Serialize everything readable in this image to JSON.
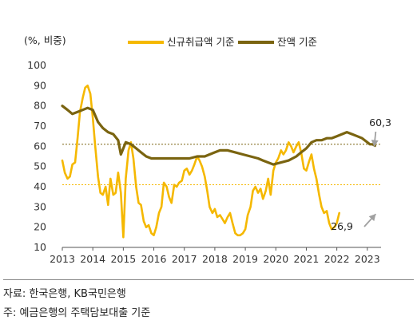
{
  "chart_data": {
    "type": "line",
    "unit_label": "(%, 비중)",
    "ylim": [
      10,
      100
    ],
    "y_ticks": [
      10,
      20,
      30,
      40,
      50,
      60,
      70,
      80,
      90,
      100
    ],
    "xlim": [
      2013.0,
      2023.45
    ],
    "x_ticks": [
      2013,
      2014,
      2015,
      2016,
      2017,
      2018,
      2019,
      2020,
      2021,
      2022,
      2023
    ],
    "grid": false,
    "legend_position": "top",
    "series": [
      {
        "name": "신규취급액 기준",
        "color": "#f5b800",
        "points": [
          [
            2013.0,
            53
          ],
          [
            2013.08,
            47
          ],
          [
            2013.17,
            44
          ],
          [
            2013.25,
            45
          ],
          [
            2013.33,
            51
          ],
          [
            2013.42,
            52
          ],
          [
            2013.5,
            64
          ],
          [
            2013.58,
            77
          ],
          [
            2013.67,
            84
          ],
          [
            2013.75,
            89
          ],
          [
            2013.83,
            90
          ],
          [
            2013.92,
            86
          ],
          [
            2014.0,
            74
          ],
          [
            2014.08,
            60
          ],
          [
            2014.17,
            45
          ],
          [
            2014.25,
            37
          ],
          [
            2014.33,
            36
          ],
          [
            2014.42,
            40
          ],
          [
            2014.5,
            31
          ],
          [
            2014.58,
            44
          ],
          [
            2014.67,
            36
          ],
          [
            2014.75,
            37
          ],
          [
            2014.83,
            47
          ],
          [
            2014.92,
            37
          ],
          [
            2015.0,
            15
          ],
          [
            2015.08,
            44
          ],
          [
            2015.17,
            58
          ],
          [
            2015.25,
            62
          ],
          [
            2015.33,
            54
          ],
          [
            2015.42,
            40
          ],
          [
            2015.5,
            32
          ],
          [
            2015.58,
            31
          ],
          [
            2015.67,
            23
          ],
          [
            2015.75,
            20
          ],
          [
            2015.83,
            21
          ],
          [
            2015.92,
            17
          ],
          [
            2016.0,
            16
          ],
          [
            2016.08,
            20
          ],
          [
            2016.17,
            27
          ],
          [
            2016.25,
            30
          ],
          [
            2016.33,
            42
          ],
          [
            2016.42,
            40
          ],
          [
            2016.5,
            35
          ],
          [
            2016.58,
            32
          ],
          [
            2016.67,
            41
          ],
          [
            2016.75,
            40
          ],
          [
            2016.83,
            42
          ],
          [
            2016.92,
            43
          ],
          [
            2017.0,
            48
          ],
          [
            2017.08,
            49
          ],
          [
            2017.17,
            46
          ],
          [
            2017.25,
            48
          ],
          [
            2017.33,
            51
          ],
          [
            2017.42,
            55
          ],
          [
            2017.5,
            53
          ],
          [
            2017.58,
            50
          ],
          [
            2017.67,
            45
          ],
          [
            2017.75,
            38
          ],
          [
            2017.83,
            30
          ],
          [
            2017.92,
            27
          ],
          [
            2018.0,
            29
          ],
          [
            2018.08,
            25
          ],
          [
            2018.17,
            26
          ],
          [
            2018.25,
            24
          ],
          [
            2018.33,
            22
          ],
          [
            2018.42,
            25
          ],
          [
            2018.5,
            27
          ],
          [
            2018.58,
            22
          ],
          [
            2018.67,
            17
          ],
          [
            2018.75,
            16
          ],
          [
            2018.83,
            16
          ],
          [
            2018.92,
            17
          ],
          [
            2019.0,
            19
          ],
          [
            2019.08,
            26
          ],
          [
            2019.17,
            30
          ],
          [
            2019.25,
            38
          ],
          [
            2019.33,
            40
          ],
          [
            2019.42,
            37
          ],
          [
            2019.5,
            39
          ],
          [
            2019.58,
            34
          ],
          [
            2019.67,
            38
          ],
          [
            2019.75,
            44
          ],
          [
            2019.83,
            36
          ],
          [
            2019.92,
            48
          ],
          [
            2020.0,
            52
          ],
          [
            2020.08,
            54
          ],
          [
            2020.17,
            58
          ],
          [
            2020.25,
            56
          ],
          [
            2020.33,
            58
          ],
          [
            2020.42,
            62
          ],
          [
            2020.5,
            60
          ],
          [
            2020.58,
            57
          ],
          [
            2020.67,
            60
          ],
          [
            2020.75,
            62
          ],
          [
            2020.83,
            57
          ],
          [
            2020.92,
            49
          ],
          [
            2021.0,
            48
          ],
          [
            2021.08,
            52
          ],
          [
            2021.17,
            56
          ],
          [
            2021.25,
            49
          ],
          [
            2021.33,
            44
          ],
          [
            2021.42,
            36
          ],
          [
            2021.5,
            30
          ],
          [
            2021.58,
            27
          ],
          [
            2021.67,
            28
          ],
          [
            2021.75,
            22
          ],
          [
            2021.83,
            19
          ],
          [
            2021.92,
            20
          ],
          [
            2022.0,
            22
          ],
          [
            2022.08,
            27
          ]
        ]
      },
      {
        "name": "잔액 기준",
        "color": "#7a6410",
        "points": [
          [
            2013.0,
            80
          ],
          [
            2013.17,
            78
          ],
          [
            2013.33,
            76
          ],
          [
            2013.5,
            77
          ],
          [
            2013.67,
            78
          ],
          [
            2013.83,
            79
          ],
          [
            2014.0,
            78
          ],
          [
            2014.17,
            72
          ],
          [
            2014.33,
            69
          ],
          [
            2014.5,
            67
          ],
          [
            2014.67,
            66
          ],
          [
            2014.83,
            63
          ],
          [
            2014.92,
            56
          ],
          [
            2015.0,
            59
          ],
          [
            2015.08,
            62
          ],
          [
            2015.25,
            61
          ],
          [
            2015.42,
            59
          ],
          [
            2015.58,
            57
          ],
          [
            2015.75,
            55
          ],
          [
            2015.92,
            54
          ],
          [
            2016.17,
            54
          ],
          [
            2016.5,
            54
          ],
          [
            2016.83,
            54
          ],
          [
            2017.17,
            54
          ],
          [
            2017.42,
            55
          ],
          [
            2017.67,
            55
          ],
          [
            2017.83,
            56
          ],
          [
            2018.0,
            57
          ],
          [
            2018.17,
            58
          ],
          [
            2018.42,
            58
          ],
          [
            2018.67,
            57
          ],
          [
            2018.92,
            56
          ],
          [
            2019.17,
            55
          ],
          [
            2019.42,
            54
          ],
          [
            2019.58,
            53
          ],
          [
            2019.75,
            52
          ],
          [
            2019.92,
            51
          ],
          [
            2020.17,
            52
          ],
          [
            2020.42,
            53
          ],
          [
            2020.67,
            55
          ],
          [
            2020.83,
            57
          ],
          [
            2021.0,
            59
          ],
          [
            2021.17,
            62
          ],
          [
            2021.33,
            63
          ],
          [
            2021.5,
            63
          ],
          [
            2021.67,
            64
          ],
          [
            2021.83,
            64
          ],
          [
            2022.0,
            65
          ],
          [
            2022.17,
            66
          ],
          [
            2022.33,
            67
          ],
          [
            2022.5,
            66
          ],
          [
            2022.67,
            65
          ],
          [
            2022.83,
            64
          ],
          [
            2023.0,
            62
          ],
          [
            2023.08,
            61
          ],
          [
            2023.17,
            61
          ],
          [
            2023.25,
            60.3
          ]
        ]
      }
    ],
    "reference_lines": [
      {
        "y": 61,
        "color": "#7a6410",
        "style": "dotted"
      },
      {
        "y": 41,
        "color": "#f5b800",
        "style": "dotted"
      }
    ],
    "annotations": [
      {
        "text": "60,3",
        "x": 2023.25,
        "y": 60.3
      },
      {
        "text": "26,9",
        "x": 2023.25,
        "y": 26.9
      }
    ]
  },
  "notes": {
    "source": "자료: 한국은행, KB국민은행",
    "note": "주: 예금은행의 주택담보대출 기준"
  },
  "colors": {
    "new_loans": "#f5b800",
    "balance": "#7a6410",
    "arrow": "#a0a0a0",
    "axis": "#555555"
  }
}
